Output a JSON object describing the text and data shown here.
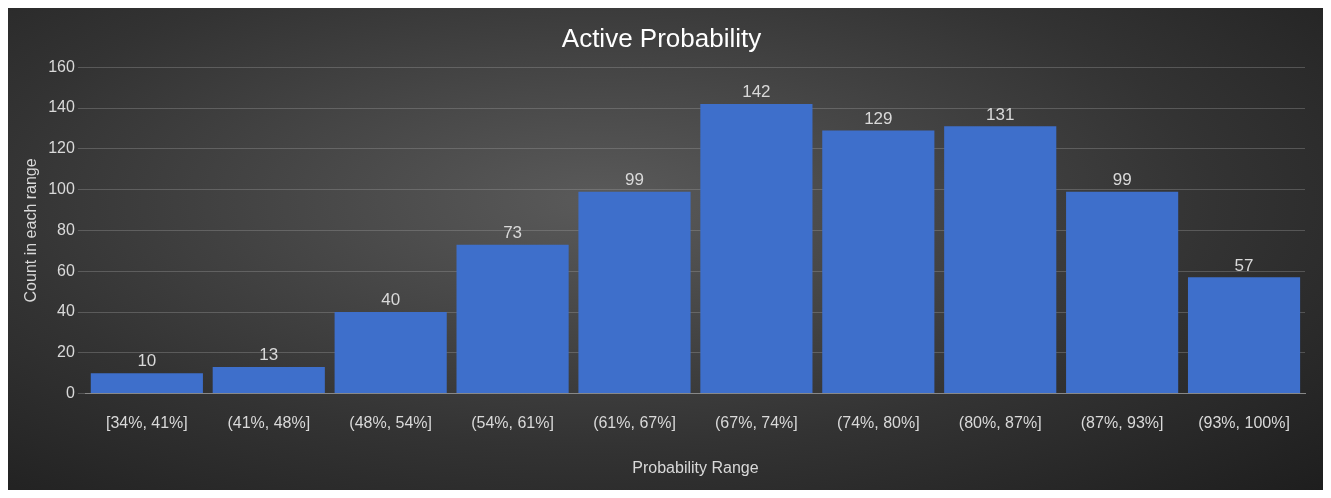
{
  "chart_data": {
    "type": "bar",
    "title": "Active Probability",
    "xlabel": "Probability Range",
    "ylabel": "Count in each range",
    "categories": [
      "[34%, 41%]",
      "(41%, 48%]",
      "(48%, 54%]",
      "(54%, 61%]",
      "(61%, 67%]",
      "(67%, 74%]",
      "(74%, 80%]",
      "(80%, 87%]",
      "(87%, 93%]",
      "(93%, 100%]"
    ],
    "values": [
      10,
      13,
      40,
      73,
      99,
      142,
      129,
      131,
      99,
      57
    ],
    "color": "#3e6fcb",
    "ylim": [
      0,
      160
    ],
    "yticks": [
      0,
      20,
      40,
      60,
      80,
      100,
      120,
      140,
      160
    ],
    "grid": "y",
    "data_labels": true,
    "legend": false
  }
}
